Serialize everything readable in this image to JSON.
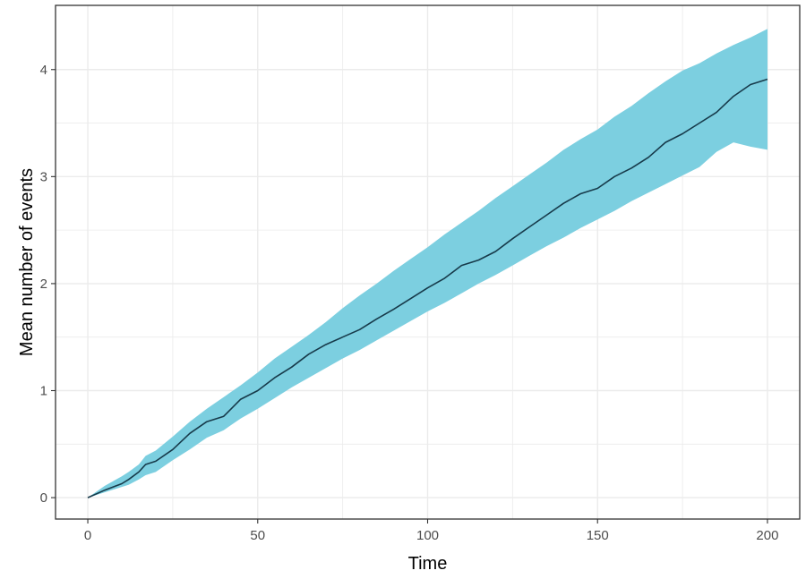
{
  "chart_data": {
    "type": "line",
    "xlabel": "Time",
    "ylabel": "Mean number of events",
    "xlim": [
      -9.5,
      209.5
    ],
    "ylim": [
      -0.2,
      4.6
    ],
    "x_ticks": [
      0,
      50,
      100,
      150,
      200
    ],
    "x_tick_labels": [
      "0",
      "50",
      "100",
      "150",
      "200"
    ],
    "y_ticks": [
      0,
      1,
      2,
      3,
      4
    ],
    "y_tick_labels": [
      "0",
      "1",
      "2",
      "3",
      "4"
    ],
    "x_minor": [
      25,
      75,
      125,
      175
    ],
    "y_minor": [
      0.5,
      1.5,
      2.5,
      3.5
    ],
    "grid": true,
    "legend": "none",
    "colors": {
      "band": "#7ccfe0",
      "line": "#173a4a",
      "grid": "#ebebeb",
      "panel_border": "#333333"
    },
    "series": [
      {
        "x": [
          0,
          5,
          10,
          12,
          15,
          17,
          20,
          25,
          30,
          35,
          40,
          45,
          50,
          55,
          60,
          65,
          70,
          75,
          80,
          85,
          90,
          95,
          100,
          105,
          110,
          115,
          120,
          125,
          130,
          135,
          140,
          145,
          150,
          155,
          160,
          165,
          170,
          175,
          180,
          185,
          190,
          195,
          200
        ],
        "values": [
          0,
          0.07,
          0.13,
          0.17,
          0.24,
          0.31,
          0.34,
          0.45,
          0.6,
          0.71,
          0.76,
          0.92,
          1.0,
          1.12,
          1.22,
          1.34,
          1.43,
          1.5,
          1.57,
          1.67,
          1.76,
          1.86,
          1.96,
          2.05,
          2.17,
          2.22,
          2.3,
          2.42,
          2.53,
          2.64,
          2.75,
          2.84,
          2.89,
          3.0,
          3.08,
          3.18,
          3.32,
          3.4,
          3.5,
          3.6,
          3.75,
          3.86,
          3.91
        ],
        "lower": [
          0,
          0.05,
          0.1,
          0.12,
          0.17,
          0.21,
          0.24,
          0.35,
          0.45,
          0.56,
          0.63,
          0.74,
          0.83,
          0.93,
          1.03,
          1.12,
          1.21,
          1.3,
          1.38,
          1.47,
          1.56,
          1.65,
          1.74,
          1.82,
          1.91,
          2.0,
          2.08,
          2.17,
          2.26,
          2.35,
          2.43,
          2.52,
          2.6,
          2.68,
          2.77,
          2.85,
          2.93,
          3.01,
          3.09,
          3.23,
          3.32,
          3.28,
          3.25
        ],
        "upper": [
          0,
          0.11,
          0.2,
          0.24,
          0.31,
          0.39,
          0.44,
          0.57,
          0.71,
          0.83,
          0.94,
          1.05,
          1.17,
          1.3,
          1.41,
          1.52,
          1.64,
          1.77,
          1.89,
          2.0,
          2.12,
          2.23,
          2.34,
          2.46,
          2.57,
          2.68,
          2.8,
          2.91,
          3.02,
          3.13,
          3.25,
          3.35,
          3.44,
          3.56,
          3.66,
          3.78,
          3.89,
          3.99,
          4.06,
          4.15,
          4.23,
          4.3,
          4.38
        ]
      }
    ]
  }
}
